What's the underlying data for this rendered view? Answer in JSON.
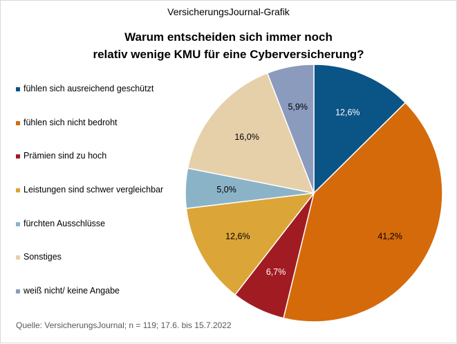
{
  "header": {
    "brand": "VersicherungsJournal-Grafik",
    "title_line1": "Warum entscheiden  sich immer noch",
    "title_line2": "relativ wenige KMU für eine Cyberversicherung?"
  },
  "source": "Quelle: VersicherungsJournal;  n = 119;  17.6. bis 15.7.2022",
  "chart_data": {
    "type": "pie",
    "title": "Warum entscheiden  sich immer noch relativ wenige KMU für eine Cyberversicherung?",
    "legend_position": "left",
    "start_angle": "12 o'clock, clockwise",
    "categories": [
      "fühlen sich ausreichend geschützt",
      "fühlen sich nicht bedroht",
      "Prämien sind zu hoch",
      "Leistungen sind schwer vergleichbar",
      "fürchten Ausschlüsse",
      "Sonstiges",
      "weiß nicht/ keine Angabe"
    ],
    "values": [
      12.6,
      41.2,
      6.7,
      12.6,
      5.0,
      16.0,
      5.9
    ],
    "labels": [
      "12,6%",
      "41,2%",
      "6,7%",
      "12,6%",
      "5,0%",
      "16,0%",
      "5,9%"
    ],
    "colors": [
      "#0b5486",
      "#d56a0b",
      "#a01c22",
      "#dba538",
      "#8bb3c8",
      "#e6d0aa",
      "#8b9bbd"
    ],
    "label_colors": [
      "#ffffff",
      "#000000",
      "#ffffff",
      "#000000",
      "#000000",
      "#000000",
      "#000000"
    ]
  }
}
